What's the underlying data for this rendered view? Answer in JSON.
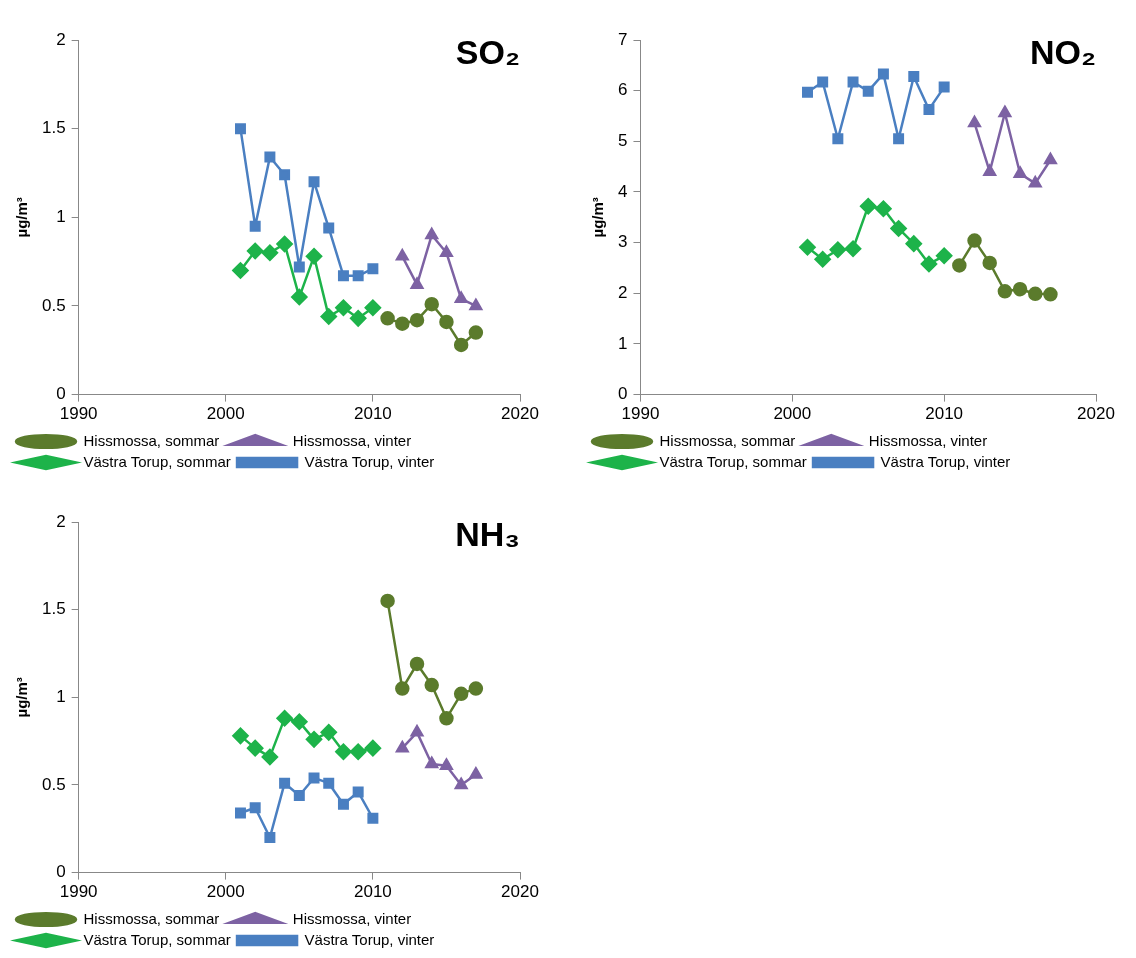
{
  "chart_data": [
    {
      "type": "line",
      "title": "SO₂",
      "ylabel": "µg/m³",
      "xlim": [
        1990,
        2020
      ],
      "xticks": [
        1990,
        2000,
        2010,
        2020
      ],
      "ylim": [
        0,
        2
      ],
      "yticks": [
        0,
        0.5,
        1,
        1.5,
        2
      ],
      "grid": false,
      "legend": "bottom",
      "series": [
        {
          "name": "Hissmossa, sommar",
          "color": "#5b7b2c",
          "marker": "circle",
          "x": [
            2011,
            2012,
            2013,
            2014,
            2015,
            2016,
            2017
          ],
          "values": [
            0.43,
            0.4,
            0.42,
            0.51,
            0.41,
            0.28,
            0.35
          ]
        },
        {
          "name": "Hissmossa, vinter",
          "color": "#7d62a3",
          "marker": "triangle",
          "x": [
            2012,
            2013,
            2014,
            2015,
            2016,
            2017
          ],
          "values": [
            0.78,
            0.62,
            0.9,
            0.8,
            0.54,
            0.5
          ]
        },
        {
          "name": "Västra Torup, sommar",
          "color": "#1db34a",
          "marker": "diamond",
          "x": [
            2001,
            2002,
            2003,
            2004,
            2005,
            2006,
            2007,
            2008,
            2009,
            2010
          ],
          "values": [
            0.7,
            0.81,
            0.8,
            0.85,
            0.55,
            0.78,
            0.44,
            0.49,
            0.43,
            0.49
          ]
        },
        {
          "name": "Västra Torup, vinter",
          "color": "#4a7fc1",
          "marker": "square",
          "x": [
            2001,
            2002,
            2003,
            2004,
            2005,
            2006,
            2007,
            2008,
            2009,
            2010
          ],
          "values": [
            1.5,
            0.95,
            1.34,
            1.24,
            0.72,
            1.2,
            0.94,
            0.67,
            0.67,
            0.71
          ]
        }
      ]
    },
    {
      "type": "line",
      "title": "NO₂",
      "ylabel": "µg/m³",
      "xlim": [
        1990,
        2020
      ],
      "xticks": [
        1990,
        2000,
        2010,
        2020
      ],
      "ylim": [
        0,
        7
      ],
      "yticks": [
        0,
        1,
        2,
        3,
        4,
        5,
        6,
        7
      ],
      "grid": false,
      "legend": "bottom",
      "series": [
        {
          "name": "Hissmossa, sommar",
          "color": "#5b7b2c",
          "marker": "circle",
          "x": [
            2011,
            2012,
            2013,
            2014,
            2015,
            2016,
            2017
          ],
          "values": [
            2.55,
            3.04,
            2.6,
            2.04,
            2.08,
            1.99,
            1.98
          ]
        },
        {
          "name": "Hissmossa, vinter",
          "color": "#7d62a3",
          "marker": "triangle",
          "x": [
            2012,
            2013,
            2014,
            2015,
            2016,
            2017
          ],
          "values": [
            5.36,
            4.4,
            5.56,
            4.36,
            4.17,
            4.63
          ]
        },
        {
          "name": "Västra Torup, sommar",
          "color": "#1db34a",
          "marker": "diamond",
          "x": [
            2001,
            2002,
            2003,
            2004,
            2005,
            2006,
            2007,
            2008,
            2009,
            2010
          ],
          "values": [
            2.91,
            2.67,
            2.86,
            2.88,
            3.72,
            3.67,
            3.28,
            2.98,
            2.58,
            2.74
          ]
        },
        {
          "name": "Västra Torup, vinter",
          "color": "#4a7fc1",
          "marker": "square",
          "x": [
            2001,
            2002,
            2003,
            2004,
            2005,
            2006,
            2007,
            2008,
            2009,
            2010
          ],
          "values": [
            5.97,
            6.17,
            5.05,
            6.17,
            5.99,
            6.33,
            5.05,
            6.28,
            5.63,
            6.07
          ]
        }
      ]
    },
    {
      "type": "line",
      "title": "NH₃",
      "ylabel": "µg/m³",
      "xlim": [
        1990,
        2020
      ],
      "xticks": [
        1990,
        2000,
        2010,
        2020
      ],
      "ylim": [
        0,
        2
      ],
      "yticks": [
        0,
        0.5,
        1,
        1.5,
        2
      ],
      "grid": false,
      "legend": "bottom",
      "series": [
        {
          "name": "Hissmossa, sommar",
          "color": "#5b7b2c",
          "marker": "circle",
          "x": [
            2011,
            2012,
            2013,
            2014,
            2015,
            2016,
            2017
          ],
          "values": [
            1.55,
            1.05,
            1.19,
            1.07,
            0.88,
            1.02,
            1.05
          ]
        },
        {
          "name": "Hissmossa, vinter",
          "color": "#7d62a3",
          "marker": "triangle",
          "x": [
            2012,
            2013,
            2014,
            2015,
            2016,
            2017
          ],
          "values": [
            0.71,
            0.8,
            0.62,
            0.61,
            0.5,
            0.56
          ]
        },
        {
          "name": "Västra Torup, sommar",
          "color": "#1db34a",
          "marker": "diamond",
          "x": [
            2001,
            2002,
            2003,
            2004,
            2005,
            2006,
            2007,
            2008,
            2009,
            2010
          ],
          "values": [
            0.78,
            0.71,
            0.66,
            0.88,
            0.86,
            0.76,
            0.8,
            0.69,
            0.69,
            0.71
          ]
        },
        {
          "name": "Västra Torup, vinter",
          "color": "#4a7fc1",
          "marker": "square",
          "x": [
            2001,
            2002,
            2003,
            2004,
            2005,
            2006,
            2007,
            2008,
            2009,
            2010
          ],
          "values": [
            0.34,
            0.37,
            0.2,
            0.51,
            0.44,
            0.54,
            0.51,
            0.39,
            0.46,
            0.31
          ]
        }
      ]
    }
  ]
}
